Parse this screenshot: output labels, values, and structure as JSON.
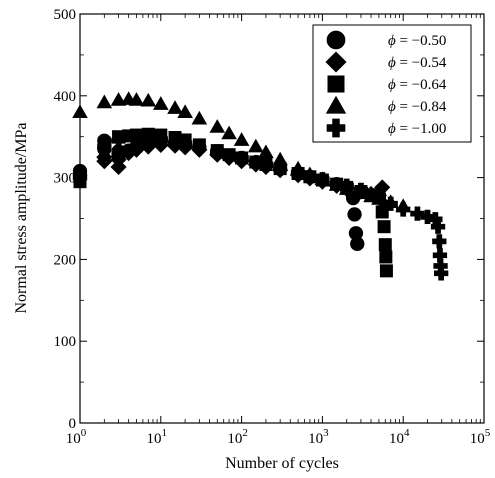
{
  "chart_data": {
    "type": "scatter",
    "xlabel": "Number of cycles",
    "ylabel": "Normal  stress amplitude/MPa",
    "xscale": "log",
    "xlim": [
      1,
      100000
    ],
    "ylim": [
      0,
      500
    ],
    "grid": false,
    "legend_position": "top-right",
    "x_ticks": [
      {
        "value": 1,
        "base": "10",
        "exp": "0"
      },
      {
        "value": 10,
        "base": "10",
        "exp": "1"
      },
      {
        "value": 100,
        "base": "10",
        "exp": "2"
      },
      {
        "value": 1000,
        "base": "10",
        "exp": "3"
      },
      {
        "value": 10000,
        "base": "10",
        "exp": "4"
      },
      {
        "value": 100000,
        "base": "10",
        "exp": "5"
      }
    ],
    "y_ticks": [
      {
        "value": 0,
        "label": "0"
      },
      {
        "value": 100,
        "label": "100"
      },
      {
        "value": 200,
        "label": "200"
      },
      {
        "value": 300,
        "label": "300"
      },
      {
        "value": 400,
        "label": "400"
      },
      {
        "value": 500,
        "label": "500"
      }
    ],
    "series": [
      {
        "name": "φ = −0.50",
        "phi": "ϕ",
        "value": "= −0.50",
        "marker": "circle",
        "color": "#000000",
        "points": [
          [
            1,
            303
          ],
          [
            1,
            308
          ],
          [
            2,
            345
          ],
          [
            2,
            335
          ],
          [
            3,
            332
          ],
          [
            3,
            328
          ],
          [
            4,
            333
          ],
          [
            5,
            338
          ],
          [
            7,
            342
          ],
          [
            10,
            344
          ],
          [
            15,
            343
          ],
          [
            20,
            341
          ],
          [
            30,
            337
          ],
          [
            50,
            331
          ],
          [
            70,
            327
          ],
          [
            100,
            323
          ],
          [
            150,
            319
          ],
          [
            200,
            316
          ],
          [
            300,
            311
          ],
          [
            500,
            305
          ],
          [
            700,
            301
          ],
          [
            1000,
            297
          ],
          [
            1500,
            292
          ],
          [
            2000,
            288
          ],
          [
            2400,
            275
          ],
          [
            2500,
            255
          ],
          [
            2600,
            232
          ],
          [
            2700,
            219
          ]
        ]
      },
      {
        "name": "φ = −0.54",
        "phi": "ϕ",
        "value": "= −0.54",
        "marker": "diamond",
        "color": "#000000",
        "points": [
          [
            2,
            320
          ],
          [
            2,
            325
          ],
          [
            3,
            313
          ],
          [
            3,
            322
          ],
          [
            4,
            330
          ],
          [
            5,
            334
          ],
          [
            7,
            338
          ],
          [
            10,
            340
          ],
          [
            15,
            339
          ],
          [
            20,
            337
          ],
          [
            30,
            334
          ],
          [
            50,
            328
          ],
          [
            70,
            324
          ],
          [
            100,
            320
          ],
          [
            150,
            316
          ],
          [
            200,
            313
          ],
          [
            300,
            309
          ],
          [
            500,
            303
          ],
          [
            700,
            299
          ],
          [
            1000,
            295
          ],
          [
            1500,
            290
          ],
          [
            2000,
            286
          ],
          [
            3000,
            283
          ],
          [
            4000,
            280
          ],
          [
            5000,
            278
          ],
          [
            5500,
            288
          ],
          [
            6000,
            265
          ]
        ]
      },
      {
        "name": "φ = −0.64",
        "phi": "ϕ",
        "value": "= −0.64",
        "marker": "square",
        "color": "#000000",
        "points": [
          [
            1,
            295
          ],
          [
            1,
            300
          ],
          [
            2,
            342
          ],
          [
            3,
            350
          ],
          [
            4,
            351
          ],
          [
            5,
            352
          ],
          [
            7,
            353
          ],
          [
            10,
            352
          ],
          [
            15,
            349
          ],
          [
            20,
            346
          ],
          [
            30,
            340
          ],
          [
            50,
            333
          ],
          [
            70,
            328
          ],
          [
            100,
            324
          ],
          [
            150,
            319
          ],
          [
            200,
            316
          ],
          [
            300,
            311
          ],
          [
            500,
            305
          ],
          [
            700,
            301
          ],
          [
            1000,
            297
          ],
          [
            1500,
            292
          ],
          [
            2000,
            288
          ],
          [
            3000,
            283
          ],
          [
            4000,
            279
          ],
          [
            5000,
            276
          ],
          [
            5500,
            258
          ],
          [
            5800,
            240
          ],
          [
            6000,
            218
          ],
          [
            6100,
            203
          ],
          [
            6200,
            186
          ]
        ]
      },
      {
        "name": "φ = −0.84",
        "phi": "ϕ",
        "value": "= −0.84",
        "marker": "triangle",
        "color": "#000000",
        "points": [
          [
            1,
            380
          ],
          [
            2,
            392
          ],
          [
            3,
            395
          ],
          [
            4,
            396
          ],
          [
            5,
            395
          ],
          [
            7,
            394
          ],
          [
            10,
            390
          ],
          [
            15,
            385
          ],
          [
            20,
            380
          ],
          [
            30,
            372
          ],
          [
            50,
            362
          ],
          [
            70,
            354
          ],
          [
            100,
            346
          ],
          [
            150,
            338
          ],
          [
            200,
            331
          ],
          [
            300,
            322
          ],
          [
            500,
            311
          ],
          [
            700,
            304
          ],
          [
            1000,
            298
          ],
          [
            1500,
            291
          ],
          [
            2000,
            286
          ],
          [
            3000,
            281
          ],
          [
            4000,
            277
          ],
          [
            5000,
            274
          ],
          [
            7000,
            270
          ],
          [
            10000,
            265
          ]
        ]
      },
      {
        "name": "φ = −1.00",
        "phi": "ϕ",
        "value": "= −1.00",
        "marker": "plus",
        "color": "#000000",
        "points": [
          [
            1,
            300
          ],
          [
            2,
            338
          ],
          [
            3,
            345
          ],
          [
            5,
            348
          ],
          [
            10,
            347
          ],
          [
            20,
            342
          ],
          [
            50,
            332
          ],
          [
            100,
            324
          ],
          [
            200,
            316
          ],
          [
            500,
            306
          ],
          [
            1000,
            298
          ],
          [
            2000,
            290
          ],
          [
            3000,
            285
          ],
          [
            5000,
            278
          ],
          [
            7000,
            268
          ],
          [
            10000,
            261
          ],
          [
            15000,
            256
          ],
          [
            20000,
            252
          ],
          [
            25000,
            249
          ],
          [
            27000,
            240
          ],
          [
            28000,
            222
          ],
          [
            28500,
            205
          ],
          [
            29000,
            192
          ],
          [
            29500,
            183
          ]
        ]
      }
    ]
  }
}
